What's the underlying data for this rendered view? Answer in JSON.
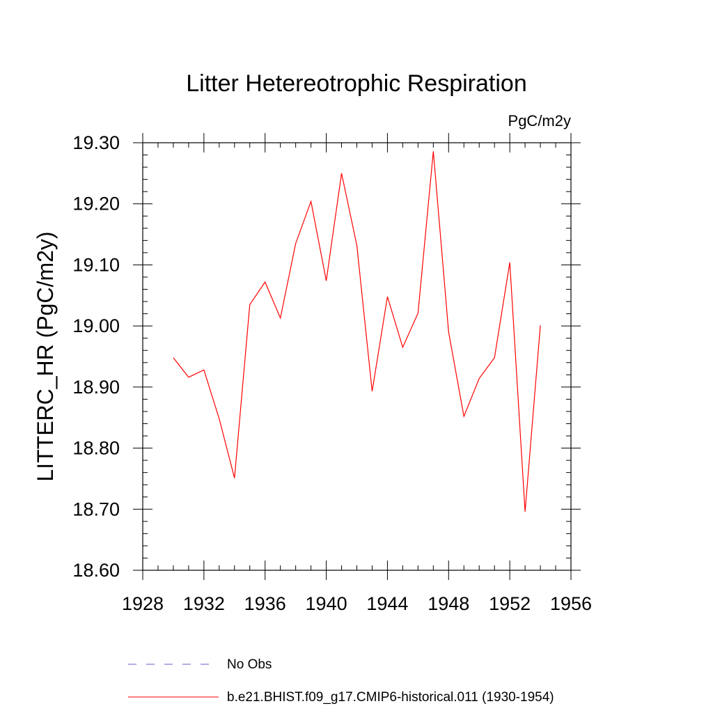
{
  "chart_data": {
    "type": "line",
    "title": "Litter Hetereotrophic Respiration",
    "units_label": "PgC/m2y",
    "ylabel": "LITTERC_HR  (PgC/m2y)",
    "xlabel": "",
    "xlim": [
      1928,
      1956
    ],
    "ylim": [
      18.6,
      19.3
    ],
    "x_ticks": [
      1928,
      1932,
      1936,
      1940,
      1944,
      1948,
      1952,
      1956
    ],
    "x_tick_labels": [
      "1928",
      "1932",
      "1936",
      "1940",
      "1944",
      "1948",
      "1952",
      "1956"
    ],
    "y_ticks": [
      18.6,
      18.7,
      18.8,
      18.9,
      19.0,
      19.1,
      19.2,
      19.3
    ],
    "y_tick_labels": [
      "18.60",
      "18.70",
      "18.80",
      "18.90",
      "19.00",
      "19.10",
      "19.20",
      "19.30"
    ],
    "grid": false,
    "legend_position": "bottom",
    "series": [
      {
        "name": "No Obs",
        "color": "#6a5acd",
        "style": "dashed",
        "x": [],
        "values": []
      },
      {
        "name": "b.e21.BHIST.f09_g17.CMIP6-historical.011 (1930-1954)",
        "color": "#ff0000",
        "style": "solid",
        "x": [
          1930,
          1931,
          1932,
          1933,
          1934,
          1935,
          1936,
          1937,
          1938,
          1939,
          1940,
          1941,
          1942,
          1943,
          1944,
          1945,
          1946,
          1947,
          1948,
          1949,
          1950,
          1951,
          1952,
          1953,
          1954
        ],
        "values": [
          18.948,
          18.916,
          18.928,
          18.848,
          18.751,
          19.035,
          19.072,
          19.013,
          19.135,
          19.204,
          19.074,
          19.25,
          19.132,
          18.893,
          19.048,
          18.965,
          19.021,
          19.286,
          18.99,
          18.852,
          18.914,
          18.948,
          19.104,
          18.696,
          19.001
        ]
      }
    ]
  }
}
